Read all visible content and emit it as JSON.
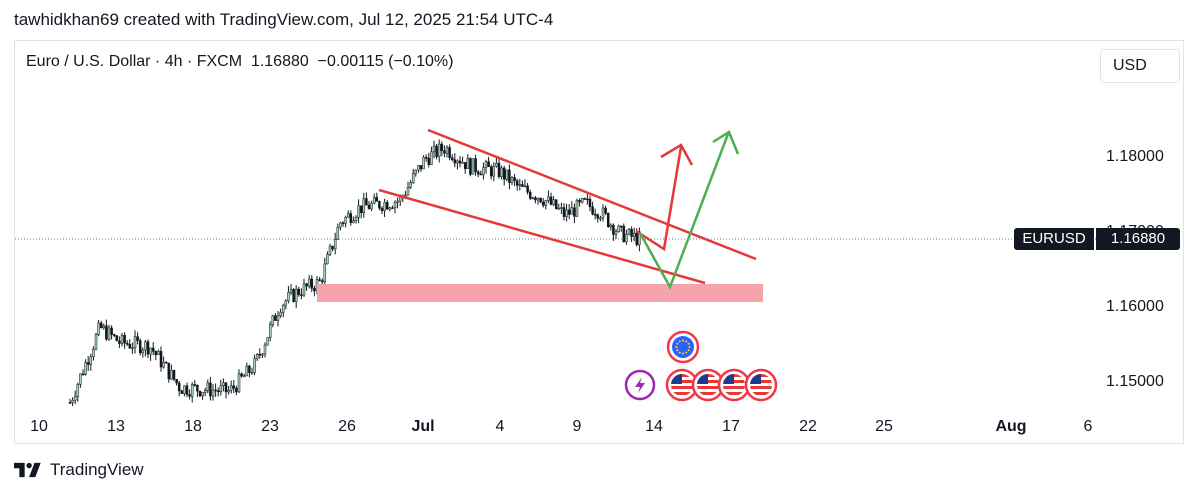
{
  "header": {
    "attribution": "tawhidkhan69 created with TradingView.com, Jul 12, 2025 21:54 UTC-4"
  },
  "legend": {
    "pair": "Euro / U.S. Dollar · 4h · FXCM",
    "last": "1.16880",
    "change": "−0.00115 (−0.10%)"
  },
  "currency_button": "USD",
  "price_badge": {
    "symbol": "EURUSD",
    "value": "1.16880"
  },
  "footer": {
    "brand": "TradingView"
  },
  "colors": {
    "up": "#26a69a",
    "pattern": "#e5383b",
    "projection_green": "#4caf50",
    "zone": "#f7a3ab",
    "eur": "#2962ff",
    "usd": "#f23645",
    "event": "#9c27b0"
  },
  "chart_data": {
    "type": "candlestick",
    "interval": "4h",
    "x_tick_labels": [
      "10",
      "13",
      "18",
      "23",
      "26",
      "Jul",
      "4",
      "9",
      "14",
      "17",
      "22",
      "25",
      "Aug",
      "6"
    ],
    "y_tick_labels": [
      "1.18000",
      "1.17000",
      "1.16000",
      "1.15000"
    ],
    "ylim": [
      1.1468,
      1.1865
    ],
    "current_price": 1.1688,
    "path_close_by_day": [
      {
        "day": "10",
        "close": 1.147
      },
      {
        "day": "12",
        "close": 1.157
      },
      {
        "day": "13",
        "close": 1.155
      },
      {
        "day": "16",
        "close": 1.154
      },
      {
        "day": "18",
        "close": 1.149
      },
      {
        "day": "20",
        "close": 1.149
      },
      {
        "day": "23",
        "close": 1.152
      },
      {
        "day": "24",
        "close": 1.161
      },
      {
        "day": "25",
        "close": 1.164
      },
      {
        "day": "26",
        "close": 1.171
      },
      {
        "day": "27",
        "close": 1.174
      },
      {
        "day": "30",
        "close": 1.18
      },
      {
        "day": "Jul 1",
        "close": 1.181
      },
      {
        "day": "4",
        "close": 1.178
      },
      {
        "day": "7",
        "close": 1.175
      },
      {
        "day": "9",
        "close": 1.172
      },
      {
        "day": "10",
        "close": 1.173
      },
      {
        "day": "11",
        "close": 1.169
      }
    ],
    "annotations": {
      "falling_wedge_upper": [
        [
          1.184,
          "Jun 30"
        ],
        [
          1.1668,
          "Jul 18"
        ]
      ],
      "falling_wedge_lower": [
        [
          1.1758,
          "Jun 27"
        ],
        [
          1.1627,
          "Jul 16"
        ]
      ],
      "support_zone": [
        1.1602,
        1.1624
      ],
      "scenario_red": [
        1.1688,
        1.1665,
        1.1813
      ],
      "scenario_green": [
        1.1698,
        1.162,
        1.1832
      ]
    },
    "events": {
      "eur_count": 1,
      "usd_count": 4,
      "lightning_count": 1
    }
  }
}
